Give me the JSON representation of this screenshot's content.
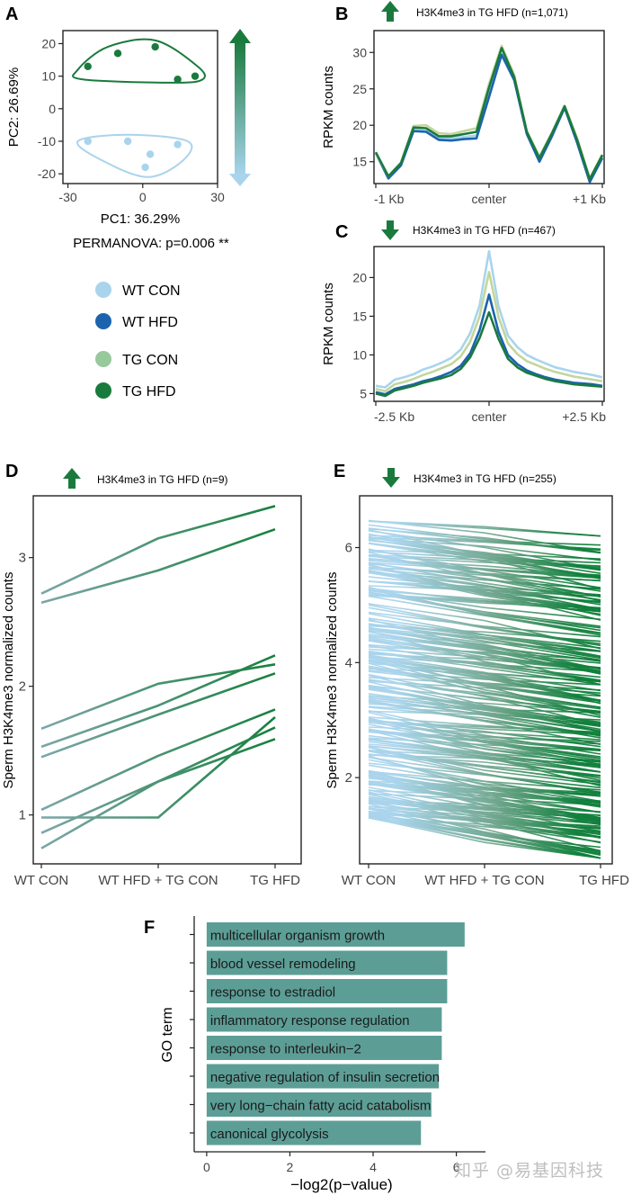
{
  "watermark": "知乎 @易基因科技",
  "panels": {
    "A": {
      "letter": "A",
      "xlabel": "PC1: 36.29%",
      "ylabel": "PC2: 26.69%",
      "stat": "PERMANOVA: p=0.006 **"
    },
    "B": {
      "letter": "B",
      "title": "H3K4me3 in TG HFD (n=1,071)",
      "ylabel": "RPKM counts"
    },
    "C": {
      "letter": "C",
      "title": "H3K4me3 in TG HFD (n=467)",
      "ylabel": "RPKM counts"
    },
    "D": {
      "letter": "D",
      "title": "H3K4me3 in TG HFD (n=9)",
      "ylabel": "Sperm H3K4me3 normalized counts"
    },
    "E": {
      "letter": "E",
      "title": "H3K4me3 in TG HFD (n=255)",
      "ylabel": "Sperm H3K4me3 normalized counts"
    },
    "F": {
      "letter": "F",
      "xlabel": "−log2(p−value)",
      "ylabel": "GO term"
    }
  },
  "legend": [
    {
      "label": "WT CON",
      "color": "#a9d4ec"
    },
    {
      "label": "WT HFD",
      "color": "#1b64ad"
    },
    {
      "label": "TG CON",
      "color": "#97c99c"
    },
    {
      "label": "TG HFD",
      "color": "#1a7a3d"
    }
  ],
  "colors": {
    "green": "#1a7a3d",
    "lightblue": "#a9d4ec",
    "bar": "#5c9e96"
  },
  "chart_data": [
    {
      "panel": "A",
      "type": "scatter",
      "xlabel": "PC1: 36.29%",
      "ylabel": "PC2: 26.69%",
      "xlim": [
        -32,
        30
      ],
      "ylim": [
        -23,
        24
      ],
      "xticks": [
        -30,
        0,
        30
      ],
      "yticks": [
        -20,
        -10,
        0,
        10,
        20
      ],
      "series": [
        {
          "group": "hfd",
          "color": "#1a7a3d",
          "points": [
            [
              -22,
              13
            ],
            [
              -10,
              17
            ],
            [
              5,
              19
            ],
            [
              14,
              9
            ],
            [
              21,
              10
            ]
          ]
        },
        {
          "group": "con",
          "color": "#a9d4ec",
          "points": [
            [
              -22,
              -10
            ],
            [
              -6,
              -10
            ],
            [
              3,
              -14
            ],
            [
              14,
              -11
            ],
            [
              1,
              -18
            ]
          ]
        }
      ],
      "hulls": [
        {
          "color": "#1a7a3d",
          "points": [
            [
              -26,
              12
            ],
            [
              -14,
              19
            ],
            [
              5,
              21
            ],
            [
              22,
              13
            ],
            [
              24,
              9
            ],
            [
              12,
              8
            ],
            [
              -24,
              9
            ]
          ]
        },
        {
          "color": "#a9d4ec",
          "points": [
            [
              -26,
              -10
            ],
            [
              -6,
              -8
            ],
            [
              18,
              -10
            ],
            [
              16,
              -16
            ],
            [
              2,
              -21
            ],
            [
              -16,
              -16
            ]
          ]
        }
      ]
    },
    {
      "panel": "B",
      "type": "line",
      "title": "H3K4me3 in TG HFD (n=1,071)",
      "ylabel": "RPKM counts",
      "xticklabels": [
        "-1 Kb",
        "center",
        "+1 Kb"
      ],
      "ylim": [
        12,
        33
      ],
      "yticks": [
        15,
        20,
        25,
        30
      ],
      "series": [
        {
          "color": "#a9d4ec",
          "values": [
            16.2,
            12.9,
            14.7,
            19.4,
            19.2,
            18.2,
            18.2,
            18.4,
            18.6,
            24.5,
            29.6,
            26.2,
            19.0,
            15.3,
            18.6,
            22.7,
            17.9,
            12.4,
            15.8
          ]
        },
        {
          "color": "#1b64ad",
          "values": [
            16.2,
            12.7,
            14.5,
            19.2,
            19.1,
            18.0,
            17.9,
            18.1,
            18.2,
            23.9,
            29.7,
            26.2,
            18.8,
            15.0,
            18.5,
            22.4,
            17.6,
            12.2,
            15.5
          ]
        },
        {
          "color": "#c3d69b",
          "values": [
            16.2,
            13.0,
            14.9,
            19.9,
            20.0,
            18.9,
            18.8,
            19.2,
            19.6,
            25.7,
            30.9,
            26.9,
            19.2,
            15.7,
            19.0,
            22.7,
            18.2,
            12.7,
            16.0
          ]
        },
        {
          "color": "#1a7a3d",
          "values": [
            16.3,
            13.0,
            14.8,
            19.7,
            19.6,
            18.5,
            18.5,
            18.8,
            19.1,
            25.2,
            30.6,
            26.6,
            19.1,
            15.5,
            18.9,
            22.6,
            18.0,
            12.6,
            15.9
          ]
        }
      ]
    },
    {
      "panel": "C",
      "type": "line",
      "title": "H3K4me3 in TG HFD (n=467)",
      "ylabel": "RPKM counts",
      "xticklabels": [
        "-2.5 Kb",
        "center",
        "+2.5 Kb"
      ],
      "ylim": [
        4,
        24
      ],
      "yticks": [
        5,
        10,
        15,
        20
      ],
      "series": [
        {
          "color": "#a9d4ec",
          "values": [
            6.0,
            5.8,
            6.8,
            7.1,
            7.5,
            8.1,
            8.5,
            9.0,
            9.6,
            10.7,
            12.8,
            16.4,
            23.4,
            16.3,
            12.5,
            11.0,
            10.0,
            9.4,
            8.9,
            8.4,
            8.1,
            7.8,
            7.6,
            7.4,
            7.1
          ]
        },
        {
          "color": "#c3d69b",
          "values": [
            5.6,
            5.3,
            6.2,
            6.5,
            6.9,
            7.4,
            7.8,
            8.3,
            8.8,
            9.8,
            11.7,
            15.0,
            20.7,
            14.9,
            11.5,
            10.1,
            9.2,
            8.7,
            8.2,
            7.8,
            7.5,
            7.2,
            7.0,
            6.8,
            6.6
          ]
        },
        {
          "color": "#1b64ad",
          "values": [
            5.2,
            4.9,
            5.6,
            5.9,
            6.2,
            6.6,
            6.9,
            7.3,
            7.8,
            8.6,
            10.2,
            13.2,
            17.8,
            13.0,
            10.0,
            8.8,
            8.0,
            7.5,
            7.1,
            6.8,
            6.6,
            6.4,
            6.3,
            6.2,
            6.0
          ]
        },
        {
          "color": "#1a7a3d",
          "values": [
            5.0,
            4.7,
            5.4,
            5.7,
            6.0,
            6.4,
            6.7,
            7.0,
            7.4,
            8.2,
            9.7,
            12.2,
            15.5,
            12.1,
            9.5,
            8.4,
            7.7,
            7.3,
            6.9,
            6.6,
            6.4,
            6.2,
            6.1,
            6.0,
            5.9
          ]
        }
      ]
    },
    {
      "panel": "D",
      "type": "line",
      "title": "H3K4me3 in TG HFD (n=9)",
      "ylabel": "Sperm H3K4me3 normalized counts",
      "categories": [
        "WT CON",
        "WT HFD + TG CON",
        "TG HFD"
      ],
      "ylim": [
        0.62,
        3.48
      ],
      "yticks": [
        1,
        2,
        3
      ],
      "series": [
        {
          "values": [
            2.72,
            3.15,
            3.4
          ]
        },
        {
          "values": [
            2.65,
            2.9,
            3.22
          ]
        },
        {
          "values": [
            1.67,
            2.02,
            2.17
          ]
        },
        {
          "values": [
            1.53,
            1.85,
            2.24
          ]
        },
        {
          "values": [
            1.45,
            1.78,
            2.1
          ]
        },
        {
          "values": [
            1.04,
            1.46,
            1.82
          ]
        },
        {
          "values": [
            0.98,
            0.98,
            1.76
          ]
        },
        {
          "values": [
            0.86,
            1.26,
            1.68
          ]
        },
        {
          "values": [
            0.74,
            1.26,
            1.59
          ]
        }
      ]
    },
    {
      "panel": "E",
      "type": "line",
      "title": "H3K4me3 in TG HFD (n=255)",
      "ylabel": "Sperm H3K4me3 normalized counts",
      "categories": [
        "WT CON",
        "WT HFD + TG CON",
        "TG HFD"
      ],
      "ylim": [
        0.5,
        6.9
      ],
      "yticks": [
        2,
        4,
        6
      ],
      "n_lines": 255,
      "start_range": [
        1.3,
        6.5
      ],
      "end_range": [
        0.6,
        6.2
      ]
    },
    {
      "panel": "F",
      "type": "bar",
      "xlabel": "−log2(p−value)",
      "ylabel": "GO term",
      "xlim": [
        -0.3,
        6.7
      ],
      "xticks": [
        0,
        2,
        4,
        6
      ],
      "categories": [
        "multicellular organism growth",
        "blood vessel remodeling",
        "response to estradiol",
        "inflammatory response regulation",
        "response to interleukin−2",
        "negative regulation of insulin secretion",
        "very long−chain fatty acid catabolism",
        "canonical glycolysis"
      ],
      "values": [
        6.2,
        5.78,
        5.78,
        5.65,
        5.65,
        5.58,
        5.4,
        5.15
      ]
    }
  ]
}
